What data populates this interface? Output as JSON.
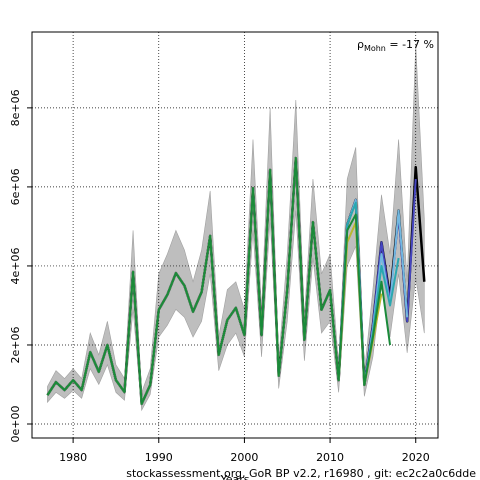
{
  "chart_data": {
    "type": "line",
    "x": [
      1977,
      1978,
      1979,
      1980,
      1981,
      1982,
      1983,
      1984,
      1985,
      1986,
      1987,
      1988,
      1989,
      1990,
      1991,
      1992,
      1993,
      1994,
      1995,
      1996,
      1997,
      1998,
      1999,
      2000,
      2001,
      2002,
      2003,
      2004,
      2005,
      2006,
      2007,
      2008,
      2009,
      2010,
      2011,
      2012,
      2013,
      2014,
      2015,
      2016,
      2017,
      2018,
      2019,
      2020,
      2021
    ],
    "band": {
      "color": "#bebebe",
      "lower": [
        550000,
        800000,
        650000,
        850000,
        650000,
        1400000,
        1000000,
        1500000,
        800000,
        600000,
        2900000,
        350000,
        750000,
        2200000,
        2500000,
        2900000,
        2700000,
        2200000,
        2600000,
        3800000,
        1350000,
        2000000,
        2300000,
        1700000,
        4900000,
        1700000,
        5200000,
        900000,
        2600000,
        5400000,
        1600000,
        4200000,
        2300000,
        2600000,
        800000,
        4000000,
        4500000,
        700000,
        1700000,
        3500000,
        2200000,
        3800000,
        1800000,
        3700000,
        2300000
      ],
      "upper": [
        950000,
        1350000,
        1150000,
        1400000,
        1150000,
        2300000,
        1750000,
        2600000,
        1500000,
        1150000,
        4900000,
        800000,
        1400000,
        3800000,
        4300000,
        4900000,
        4400000,
        3600000,
        4400000,
        5900000,
        2200000,
        3400000,
        3600000,
        2900000,
        7200000,
        2900000,
        8000000,
        1600000,
        4300000,
        8200000,
        2700000,
        6200000,
        3800000,
        4300000,
        1500000,
        6200000,
        7000000,
        1300000,
        3400000,
        5800000,
        4300000,
        7200000,
        3600000,
        9600000,
        5200000
      ]
    },
    "series": [
      {
        "color": "#000000",
        "values": [
          730000,
          1060000,
          860000,
          1110000,
          860000,
          1820000,
          1320000,
          2000000,
          1110000,
          810000,
          3850000,
          510000,
          990000,
          2890000,
          3270000,
          3820000,
          3500000,
          2840000,
          3340000,
          4760000,
          1750000,
          2630000,
          2940000,
          2250000,
          5970000,
          2250000,
          6430000,
          1220000,
          3390000,
          6730000,
          2130000,
          5110000,
          2890000,
          3390000,
          1110000,
          5040000,
          5670000,
          990000,
          2500000,
          4600000,
          3200000,
          5400000,
          2600000,
          6500000,
          3600000
        ]
      },
      {
        "color": "#4646c0",
        "values": [
          730000,
          1060000,
          860000,
          1110000,
          860000,
          1820000,
          1320000,
          2000000,
          1110000,
          810000,
          3850000,
          510000,
          990000,
          2890000,
          3270000,
          3820000,
          3500000,
          2840000,
          3340000,
          4760000,
          1750000,
          2630000,
          2940000,
          2250000,
          5970000,
          2250000,
          6430000,
          1220000,
          3390000,
          6730000,
          2130000,
          5110000,
          2890000,
          3390000,
          1110000,
          5040000,
          5670000,
          990000,
          2500000,
          4600000,
          3100000,
          5300000,
          2600000,
          6200000,
          null
        ]
      },
      {
        "color": "#72b8e0",
        "values": [
          730000,
          1060000,
          860000,
          1110000,
          860000,
          1820000,
          1320000,
          2000000,
          1110000,
          810000,
          3850000,
          510000,
          990000,
          2890000,
          3270000,
          3820000,
          3500000,
          2840000,
          3340000,
          4760000,
          1750000,
          2630000,
          2940000,
          2250000,
          5970000,
          2250000,
          6430000,
          1220000,
          3390000,
          6730000,
          2130000,
          5110000,
          2890000,
          3390000,
          1110000,
          5040000,
          5670000,
          990000,
          2400000,
          4300000,
          3000000,
          5400000,
          2700000,
          null,
          null
        ]
      },
      {
        "color": "#2aa8b0",
        "values": [
          730000,
          1060000,
          860000,
          1110000,
          860000,
          1820000,
          1320000,
          2000000,
          1110000,
          810000,
          3850000,
          510000,
          990000,
          2890000,
          3270000,
          3820000,
          3500000,
          2840000,
          3340000,
          4760000,
          1750000,
          2630000,
          2940000,
          2250000,
          5970000,
          2250000,
          6430000,
          1220000,
          3390000,
          6730000,
          2130000,
          5110000,
          2890000,
          3390000,
          1110000,
          5040000,
          5600000,
          990000,
          2300000,
          4000000,
          3000000,
          4200000,
          null,
          null,
          null
        ]
      },
      {
        "color": "#b8b830",
        "values": [
          730000,
          1060000,
          860000,
          1110000,
          860000,
          1820000,
          1320000,
          2000000,
          1110000,
          810000,
          3850000,
          510000,
          990000,
          2890000,
          3270000,
          3820000,
          3500000,
          2840000,
          3340000,
          4760000,
          1750000,
          2630000,
          2940000,
          2250000,
          5970000,
          2250000,
          6430000,
          1220000,
          3390000,
          6730000,
          2130000,
          5110000,
          2890000,
          3390000,
          1110000,
          4600000,
          5100000,
          990000,
          2100000,
          3300000,
          null,
          null,
          null,
          null,
          null
        ]
      },
      {
        "color": "#1a8a3a",
        "values": [
          730000,
          1060000,
          860000,
          1110000,
          860000,
          1820000,
          1320000,
          2000000,
          1110000,
          810000,
          3850000,
          510000,
          990000,
          2890000,
          3270000,
          3820000,
          3500000,
          2840000,
          3340000,
          4760000,
          1750000,
          2630000,
          2940000,
          2250000,
          5970000,
          2250000,
          6430000,
          1220000,
          3390000,
          6730000,
          2130000,
          5110000,
          2890000,
          3390000,
          1110000,
          4900000,
          5300000,
          990000,
          2200000,
          3600000,
          2000000,
          null,
          null,
          null,
          null
        ]
      }
    ],
    "xlim": [
      1975.2,
      2022.6
    ],
    "xticks": [
      1980,
      1990,
      2000,
      2010,
      2020
    ],
    "ylim": [
      -354000,
      9920000
    ],
    "yticks": [
      {
        "value": 0,
        "label": "0e+00"
      },
      {
        "value": 2000000,
        "label": "2e+06"
      },
      {
        "value": 4000000,
        "label": "4e+06"
      },
      {
        "value": 6000000,
        "label": "6e+06"
      },
      {
        "value": 8000000,
        "label": "8e+06"
      }
    ],
    "grid": true,
    "xlabel": "Years",
    "annotation": {
      "symbol": "ρ",
      "subscript": "Mohn",
      "text": " = -17 %"
    },
    "footer": "stockassessment.org, GoR BP v2.2, r16980 , git: ec2c2a0c6dde"
  }
}
